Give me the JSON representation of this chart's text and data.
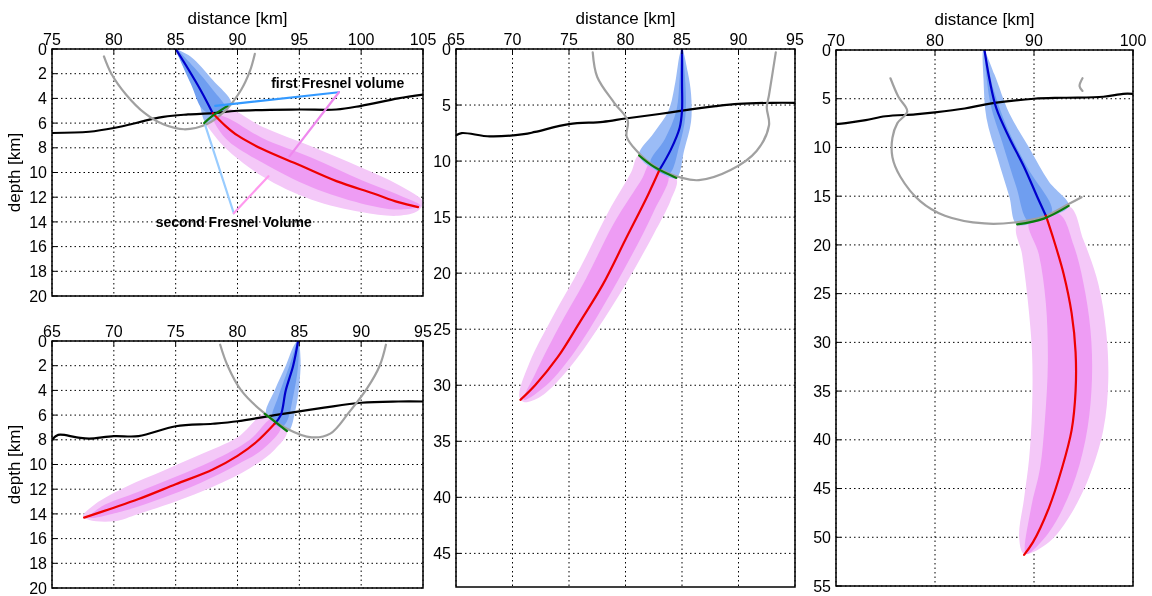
{
  "chart_data": [
    {
      "type": "line",
      "xlabel": "distance [km]",
      "ylabel": "depth [km]",
      "xlim": [
        75,
        105
      ],
      "ylim": [
        20,
        0
      ],
      "xticks": [
        75,
        80,
        85,
        90,
        95,
        100,
        105
      ],
      "yticks": [
        0,
        2,
        4,
        6,
        8,
        10,
        12,
        14,
        16,
        18,
        20
      ],
      "grid": true,
      "annotations": [
        "first Fresnel volume",
        "second Fresnel Volume"
      ],
      "series": [
        {
          "type": "area",
          "color": "#f4c8f8",
          "x": [
            87.3,
            89,
            92,
            96,
            100,
            103,
            105,
            104.6,
            103,
            100,
            96,
            92,
            89,
            87.5
          ],
          "values": [
            6.0,
            4.8,
            6.3,
            7.9,
            9.6,
            11.0,
            12.4,
            13.1,
            13.5,
            13.2,
            12.2,
            10.3,
            8.0,
            6.2
          ]
        },
        {
          "type": "area",
          "color": "#ee9cf4",
          "x": [
            88,
            89,
            92,
            96,
            100,
            103,
            104.8,
            103,
            100,
            96,
            92,
            89
          ],
          "values": [
            5.4,
            5.5,
            7.2,
            8.8,
            10.6,
            11.8,
            12.7,
            13.0,
            12.5,
            11.2,
            9.2,
            7.2
          ]
        },
        {
          "type": "area",
          "color": "#9bbcf6",
          "x": [
            85,
            86.2,
            88,
            89.5,
            88.5,
            87.5,
            86.8,
            85.8,
            85
          ],
          "values": [
            0,
            0.6,
            2.5,
            4.4,
            5.4,
            6.0,
            4.0,
            1.8,
            0
          ]
        },
        {
          "type": "area",
          "color": "#6f9ef0",
          "x": [
            85,
            86.5,
            88,
            89,
            88,
            87.1,
            86.3,
            85.4
          ],
          "values": [
            0,
            1.5,
            3.3,
            4.8,
            5.3,
            4.8,
            3.0,
            1.0
          ]
        },
        {
          "type": "line",
          "color": "#000000",
          "x": [
            75,
            78,
            80,
            84,
            86,
            88,
            90,
            95,
            98,
            100,
            103,
            105
          ],
          "values": [
            6.8,
            6.7,
            6.4,
            5.5,
            5.3,
            5.2,
            5.0,
            4.9,
            4.9,
            4.6,
            4.0,
            3.7
          ]
        },
        {
          "type": "line",
          "color": "#a0a0a0",
          "x": [
            79.2,
            79.8,
            81,
            82.5,
            84,
            85.7,
            87.5,
            89,
            90.3,
            91,
            91.4
          ],
          "values": [
            0.6,
            2,
            3.7,
            5.2,
            6.1,
            6.5,
            6.1,
            5.0,
            3.3,
            1.8,
            0.4
          ]
        },
        {
          "type": "line",
          "color": "#0000cc",
          "x": [
            85,
            86,
            87,
            88
          ],
          "values": [
            0,
            1.6,
            3.3,
            5.2
          ]
        },
        {
          "type": "line",
          "color": "#ee0000",
          "x": [
            88,
            89,
            90,
            92,
            95,
            98,
            101,
            103,
            104.6
          ],
          "values": [
            5.2,
            6.2,
            7.0,
            8.1,
            9.4,
            10.7,
            11.7,
            12.4,
            12.8
          ]
        },
        {
          "type": "line",
          "color": "#0a7a0a",
          "x": [
            87.3,
            88,
            89.2
          ],
          "values": [
            6.0,
            5.4,
            4.6
          ]
        },
        {
          "type": "line",
          "color": "#3399ff",
          "x": [
            98.2,
            88.2
          ],
          "values": [
            3.5,
            4.6
          ]
        },
        {
          "type": "line",
          "color": "#ee88ee",
          "x": [
            98.2,
            94.2
          ],
          "values": [
            3.5,
            8.7
          ]
        },
        {
          "type": "line",
          "color": "#99ccff",
          "x": [
            89.7,
            87.4
          ],
          "values": [
            13.3,
            6.2
          ]
        },
        {
          "type": "line",
          "color": "#ff99ee",
          "x": [
            89.7,
            92.5
          ],
          "values": [
            13.3,
            10.3
          ]
        }
      ]
    },
    {
      "type": "line",
      "ylabel": "depth [km]",
      "xlim": [
        65,
        95
      ],
      "ylim": [
        20,
        0
      ],
      "xticks": [
        65,
        70,
        75,
        80,
        85,
        90,
        95
      ],
      "yticks": [
        0,
        2,
        4,
        6,
        8,
        10,
        12,
        14,
        16,
        18,
        20
      ],
      "grid": true,
      "series": [
        {
          "type": "area",
          "color": "#f4c8f8",
          "x": [
            84,
            83,
            81,
            78,
            75,
            72,
            70,
            68,
            67.5,
            68.5,
            71,
            74,
            77,
            80,
            82.3
          ],
          "values": [
            7.3,
            8.8,
            10.3,
            11.8,
            13.0,
            14.0,
            14.6,
            14.5,
            14.2,
            13.2,
            11.8,
            10.5,
            9.2,
            7.8,
            5.9
          ]
        },
        {
          "type": "area",
          "color": "#ee9cf4",
          "x": [
            83.5,
            82,
            80,
            77,
            74,
            71,
            68,
            69,
            72,
            75,
            78,
            81,
            82.8
          ],
          "values": [
            7.0,
            8.8,
            10.0,
            11.5,
            12.7,
            13.7,
            14.3,
            13.4,
            12.2,
            11.0,
            9.7,
            8.0,
            6.3
          ]
        },
        {
          "type": "area",
          "color": "#9bbcf6",
          "x": [
            84.9,
            85.1,
            85,
            84.7,
            84.1,
            83.2,
            82.3,
            83,
            83.9,
            84.6
          ],
          "values": [
            0,
            1.5,
            3.5,
            5.5,
            7.3,
            6.8,
            5.9,
            4.0,
            2.0,
            0.3
          ]
        },
        {
          "type": "area",
          "color": "#6f9ef0",
          "x": [
            84.9,
            84.9,
            84.5,
            84,
            83.5,
            82.8,
            83.3,
            84.2
          ],
          "values": [
            0,
            2,
            4.5,
            6.5,
            7.0,
            6.3,
            4.5,
            2.0
          ]
        },
        {
          "type": "line",
          "color": "#000000",
          "x": [
            65,
            65.5,
            67,
            68,
            70,
            72,
            75,
            78,
            80,
            83,
            85,
            87,
            90,
            93,
            95
          ],
          "values": [
            8.0,
            7.6,
            7.8,
            7.9,
            7.7,
            7.7,
            6.9,
            6.7,
            6.5,
            6.0,
            5.7,
            5.4,
            5.0,
            4.9,
            4.9
          ]
        },
        {
          "type": "line",
          "color": "#a0a0a0",
          "x": [
            78.6,
            79.2,
            80.3,
            82,
            84,
            86,
            87.5,
            89,
            90.5,
            91.5,
            92
          ],
          "values": [
            0.3,
            2,
            4,
            5.7,
            7.1,
            7.8,
            7.5,
            5.8,
            3.8,
            2.0,
            0.3
          ]
        },
        {
          "type": "line",
          "color": "#0000cc",
          "x": [
            84.9,
            84.5,
            83.9,
            83.5,
            83
          ],
          "values": [
            0,
            2,
            4,
            6,
            6.7
          ]
        },
        {
          "type": "line",
          "color": "#ee0000",
          "x": [
            83,
            81.5,
            80,
            78,
            75,
            72,
            70,
            67.6
          ],
          "values": [
            6.7,
            8.2,
            9.3,
            10.4,
            11.6,
            12.8,
            13.5,
            14.3
          ]
        },
        {
          "type": "line",
          "color": "#0a7a0a",
          "x": [
            82.2,
            83,
            84
          ],
          "values": [
            5.9,
            6.5,
            7.3
          ]
        }
      ]
    },
    {
      "type": "line",
      "xlabel": "distance [km]",
      "xlim": [
        65,
        95
      ],
      "ylim": [
        48,
        0
      ],
      "xticks": [
        65,
        70,
        75,
        80,
        85,
        90,
        95
      ],
      "yticks": [
        0,
        5,
        10,
        15,
        20,
        25,
        30,
        35,
        40,
        45
      ],
      "grid": true,
      "series": [
        {
          "type": "area",
          "color": "#f4c8f8",
          "x": [
            84.5,
            84,
            82.5,
            80,
            77.5,
            75,
            72.5,
            71,
            70.6,
            71.5,
            73.5,
            76,
            78.5,
            80.5,
            81.2
          ],
          "values": [
            11.5,
            13.5,
            16.5,
            21,
            25,
            28.5,
            31,
            31.5,
            31,
            28,
            24,
            19.5,
            14.5,
            11,
            9.5
          ]
        },
        {
          "type": "area",
          "color": "#ee9cf4",
          "x": [
            83.8,
            82.5,
            80.5,
            78,
            75.5,
            73,
            71,
            72,
            74,
            76.5,
            79,
            81.5,
            82.2
          ],
          "values": [
            11.2,
            14.5,
            18.5,
            23,
            27,
            30,
            31.3,
            29,
            25,
            20.5,
            15.5,
            11.5,
            10.2
          ]
        },
        {
          "type": "area",
          "color": "#9bbcf6",
          "x": [
            85,
            85.5,
            85.8,
            85.8,
            85.2,
            84.5,
            83,
            81.2,
            82.5,
            83.8,
            84.4,
            84.8
          ],
          "values": [
            0,
            2,
            4,
            6.5,
            9,
            11.5,
            11.0,
            9.5,
            7.5,
            5.5,
            3,
            0.5
          ]
        },
        {
          "type": "area",
          "color": "#6f9ef0",
          "x": [
            85,
            85.3,
            85.3,
            84.8,
            83.8,
            82.2,
            83.5,
            84.5,
            84.8
          ],
          "values": [
            0,
            3,
            6,
            8.5,
            11.2,
            10.2,
            8,
            5.5,
            2.5
          ]
        },
        {
          "type": "line",
          "color": "#000000",
          "x": [
            65,
            65.5,
            68,
            71,
            72,
            75,
            78,
            80,
            83,
            85,
            88,
            90,
            93,
            95
          ],
          "values": [
            7.7,
            7.5,
            7.8,
            7.6,
            7.4,
            6.7,
            6.5,
            6.2,
            5.8,
            5.5,
            5.1,
            4.9,
            4.8,
            4.8
          ]
        },
        {
          "type": "line",
          "color": "#a0a0a0",
          "x": [
            77.1,
            77.5,
            79,
            80.2,
            80.1,
            81,
            82.5,
            85,
            86.5,
            89.3,
            91.6,
            92.7,
            92.5,
            92.7,
            93.3
          ],
          "values": [
            0.3,
            2.5,
            4.8,
            6.4,
            7.8,
            9.1,
            10.4,
            11.5,
            11.7,
            10.8,
            9.1,
            6.8,
            5.2,
            4.1,
            0.3
          ]
        },
        {
          "type": "line",
          "color": "#0000cc",
          "x": [
            85,
            85,
            85,
            84.8,
            84,
            83
          ],
          "values": [
            0,
            3,
            5.5,
            7,
            9,
            10.8
          ]
        },
        {
          "type": "line",
          "color": "#ee0000",
          "x": [
            83,
            82,
            80,
            78,
            76,
            74,
            72,
            70.7
          ],
          "values": [
            10.8,
            13,
            17,
            21,
            24.3,
            27.5,
            30,
            31.3
          ]
        },
        {
          "type": "line",
          "color": "#0a7a0a",
          "x": [
            81.2,
            82.5,
            84.5
          ],
          "values": [
            9.5,
            10.5,
            11.5
          ]
        }
      ]
    },
    {
      "type": "line",
      "xlabel": "distance [km]",
      "xlim": [
        70,
        100
      ],
      "ylim": [
        55,
        0
      ],
      "xticks": [
        70,
        80,
        90,
        100
      ],
      "yticks": [
        0,
        5,
        10,
        15,
        20,
        25,
        30,
        35,
        40,
        45,
        50,
        55
      ],
      "grid": true,
      "series": [
        {
          "type": "area",
          "color": "#f4c8f8",
          "x": [
            93.5,
            95,
            96.5,
            97.3,
            97.5,
            97,
            95.5,
            93.5,
            91.5,
            89,
            88.5,
            89,
            89.5,
            89.8,
            89.8,
            89.3,
            88.8,
            88.3
          ],
          "values": [
            16,
            19.5,
            24,
            29,
            34,
            39,
            44,
            48,
            50.5,
            51.7,
            50,
            46,
            42,
            37,
            31,
            25,
            21,
            17.9
          ]
        },
        {
          "type": "area",
          "color": "#ee9cf4",
          "x": [
            92.5,
            94,
            95.2,
            95.8,
            95.8,
            95.2,
            93.8,
            91.5,
            89.2,
            89.7,
            90.6,
            91.1,
            91.4,
            91.2,
            90.5,
            89.5
          ],
          "values": [
            16.8,
            20,
            25,
            30,
            35,
            40,
            45,
            49.5,
            51.7,
            47,
            43,
            38,
            32,
            26,
            21,
            17.6
          ]
        },
        {
          "type": "area",
          "color": "#9bbcf6",
          "x": [
            84.9,
            86,
            87.5,
            89.5,
            91.5,
            93.5,
            91,
            88.3,
            87.5,
            86.3,
            85.2,
            84.9
          ],
          "values": [
            0,
            2.5,
            6.5,
            10,
            13.5,
            16,
            17.3,
            17.9,
            15,
            11,
            7,
            3
          ]
        },
        {
          "type": "area",
          "color": "#6f9ef0",
          "x": [
            85,
            85.9,
            87.3,
            89.3,
            91.8,
            89.5,
            88.2,
            86.8,
            85.6
          ],
          "values": [
            0,
            4,
            8,
            12,
            16.6,
            17.6,
            14,
            9.5,
            5.5
          ]
        },
        {
          "type": "line",
          "color": "#000000",
          "x": [
            70,
            71,
            73,
            75,
            78,
            80,
            83,
            85,
            87,
            90,
            93,
            97,
            99,
            100
          ],
          "values": [
            7.6,
            7.5,
            7.2,
            6.8,
            6.6,
            6.4,
            6.0,
            5.6,
            5.3,
            5.0,
            4.9,
            4.8,
            4.5,
            4.5
          ]
        },
        {
          "type": "line",
          "color": "#a0a0a0",
          "x": [
            75.5,
            76.3,
            77.2,
            76.2,
            75.7,
            75.7,
            76.5,
            78.5,
            81,
            85,
            88,
            91,
            93.5,
            94.8
          ],
          "values": [
            2.9,
            4.8,
            6.3,
            7.5,
            9,
            11,
            13,
            15.5,
            17,
            17.8,
            17.7,
            17.1,
            15.8,
            15.1
          ]
        },
        {
          "type": "line",
          "color": "#a0a0a0",
          "x": [
            94.9,
            94.6,
            94.9
          ],
          "values": [
            2.9,
            3.7,
            4.2
          ]
        },
        {
          "type": "line",
          "color": "#0000cc",
          "x": [
            85,
            85.5,
            86.2,
            87.5,
            89,
            90.3,
            91.2
          ],
          "values": [
            0,
            3,
            6,
            9,
            12,
            15,
            17
          ]
        },
        {
          "type": "line",
          "color": "#ee0000",
          "x": [
            91.2,
            92,
            93,
            93.8,
            94.2,
            94.2,
            93.8,
            92.8,
            91.5,
            89.9,
            89
          ],
          "values": [
            17,
            19.5,
            23,
            27,
            31,
            35,
            39,
            43,
            47,
            50.5,
            51.8
          ]
        },
        {
          "type": "line",
          "color": "#0a7a0a",
          "x": [
            88.3,
            91,
            93.5
          ],
          "values": [
            17.9,
            17.3,
            16
          ]
        }
      ]
    }
  ]
}
